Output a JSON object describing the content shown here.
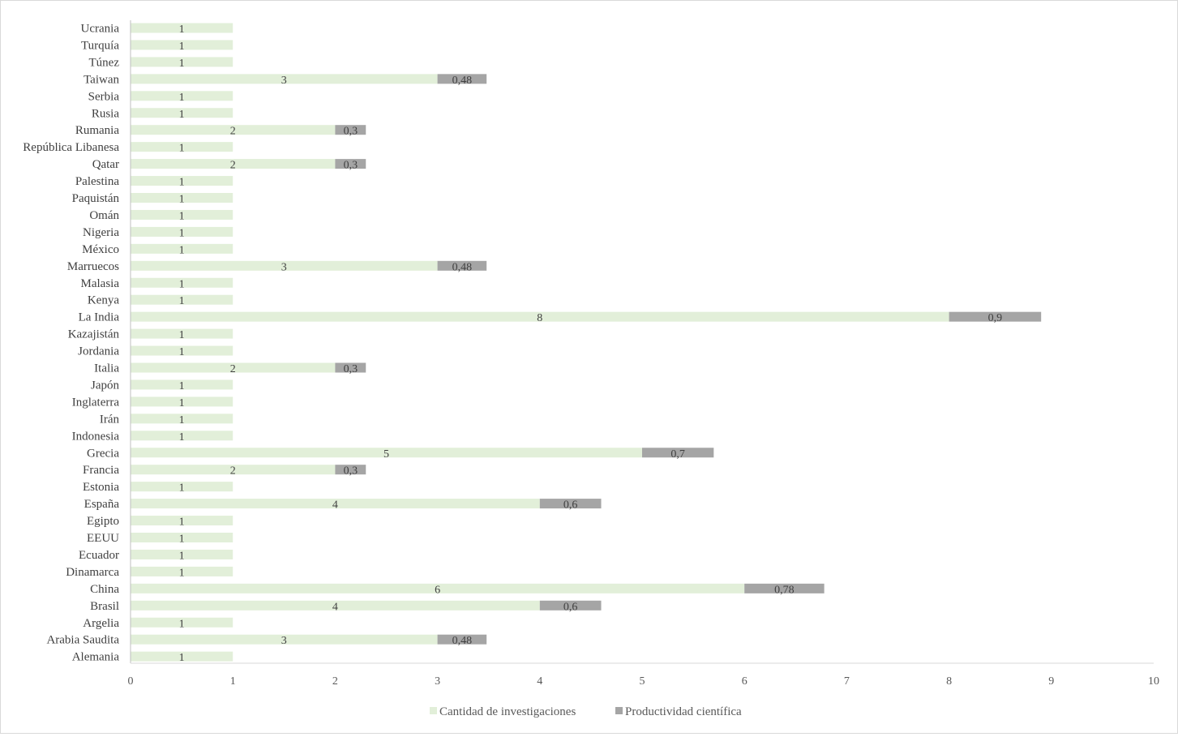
{
  "chart_data": {
    "type": "bar",
    "orientation": "horizontal",
    "stacked": true,
    "categories": [
      "Alemania",
      "Arabia Saudita",
      "Argelia",
      "Brasil",
      "China",
      "Dinamarca",
      "Ecuador",
      "EEUU",
      "Egipto",
      "España",
      "Estonia",
      "Francia",
      "Grecia",
      "Indonesia",
      "Irán",
      "Inglaterra",
      "Japón",
      "Italia",
      "Jordania",
      "Kazajistán",
      "La India",
      "Kenya",
      "Malasia",
      "Marruecos",
      "México",
      "Nigeria",
      "Omán",
      "Paquistán",
      "Palestina",
      "Qatar",
      "República Libanesa",
      "Rumania",
      "Rusia",
      "Serbia",
      "Taiwan",
      "Túnez",
      "Turquía",
      "Ucrania"
    ],
    "series": [
      {
        "name": "Cantidad de investigaciones",
        "color": "#e2efd9",
        "values": [
          1,
          3,
          1,
          4,
          6,
          1,
          1,
          1,
          1,
          4,
          1,
          2,
          5,
          1,
          1,
          1,
          1,
          2,
          1,
          1,
          8,
          1,
          1,
          3,
          1,
          1,
          1,
          1,
          1,
          2,
          1,
          2,
          1,
          1,
          3,
          1,
          1,
          1
        ],
        "labels": [
          "1",
          "3",
          "1",
          "4",
          "6",
          "1",
          "1",
          "1",
          "1",
          "4",
          "1",
          "2",
          "5",
          "1",
          "1",
          "1",
          "1",
          "2",
          "1",
          "1",
          "8",
          "1",
          "1",
          "3",
          "1",
          "1",
          "1",
          "1",
          "1",
          "2",
          "1",
          "2",
          "1",
          "1",
          "3",
          "1",
          "1",
          "1"
        ]
      },
      {
        "name": "Productividad científica",
        "color": "#a5a5a5",
        "values": [
          null,
          0.48,
          null,
          0.6,
          0.78,
          null,
          null,
          null,
          null,
          0.6,
          null,
          0.3,
          0.7,
          null,
          null,
          null,
          null,
          0.3,
          null,
          null,
          0.9,
          null,
          null,
          0.48,
          null,
          null,
          null,
          null,
          null,
          0.3,
          null,
          0.3,
          null,
          null,
          0.48,
          null,
          null,
          null
        ],
        "labels": [
          "",
          "0,48",
          "",
          "0,6",
          "0,78",
          "",
          "",
          "",
          "",
          "0,6",
          "",
          "0,3",
          "0,7",
          "",
          "",
          "",
          "",
          "0,3",
          "",
          "",
          "0,9",
          "",
          "",
          "0,48",
          "",
          "",
          "",
          "",
          "",
          "0,3",
          "",
          "0,3",
          "",
          "",
          "0,48",
          "",
          "",
          ""
        ]
      }
    ],
    "xlim": [
      0,
      10
    ],
    "xticks": [
      "0",
      "1",
      "2",
      "3",
      "4",
      "5",
      "6",
      "7",
      "8",
      "9",
      "10"
    ],
    "grid": false,
    "legend": "bottom"
  }
}
